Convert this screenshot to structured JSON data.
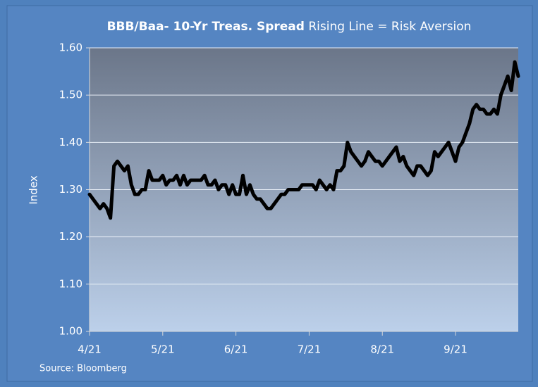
{
  "chart_data": {
    "type": "line",
    "title": "BBB/Baa- 10-Yr Treas. Spread",
    "subtitle": "Rising Line = Risk Aversion",
    "y_label": "Index",
    "source": "Source: Bloomberg",
    "categories": [
      "4/21",
      null,
      null,
      null,
      null,
      null,
      null,
      null,
      null,
      null,
      null,
      null,
      null,
      null,
      null,
      null,
      null,
      null,
      null,
      null,
      null,
      "5/21",
      null,
      null,
      null,
      null,
      null,
      null,
      null,
      null,
      null,
      null,
      null,
      null,
      null,
      null,
      null,
      null,
      null,
      null,
      null,
      null,
      "6/21",
      null,
      null,
      null,
      null,
      null,
      null,
      null,
      null,
      null,
      null,
      null,
      null,
      null,
      null,
      null,
      null,
      null,
      null,
      null,
      null,
      "7/21",
      null,
      null,
      null,
      null,
      null,
      null,
      null,
      null,
      null,
      null,
      null,
      null,
      null,
      null,
      null,
      null,
      null,
      null,
      null,
      null,
      "8/21",
      null,
      null,
      null,
      null,
      null,
      null,
      null,
      null,
      null,
      null,
      null,
      null,
      null,
      null,
      null,
      null,
      null,
      null,
      null,
      null,
      "9/21",
      null,
      null,
      null,
      null,
      null,
      null,
      null,
      null,
      null,
      null,
      null,
      null,
      null,
      null,
      null,
      null,
      null,
      null
    ],
    "series": [
      {
        "name": "BBB/Baa- 10-Yr Treas. Spread",
        "color": "#000000",
        "values": [
          1.29,
          1.28,
          1.27,
          1.26,
          1.27,
          1.26,
          1.24,
          1.35,
          1.36,
          1.35,
          1.34,
          1.35,
          1.31,
          1.29,
          1.29,
          1.3,
          1.3,
          1.34,
          1.32,
          1.32,
          1.32,
          1.33,
          1.31,
          1.32,
          1.32,
          1.33,
          1.31,
          1.33,
          1.31,
          1.32,
          1.32,
          1.32,
          1.32,
          1.33,
          1.31,
          1.31,
          1.32,
          1.3,
          1.31,
          1.31,
          1.29,
          1.31,
          1.29,
          1.29,
          1.33,
          1.29,
          1.31,
          1.29,
          1.28,
          1.28,
          1.27,
          1.26,
          1.26,
          1.27,
          1.28,
          1.29,
          1.29,
          1.3,
          1.3,
          1.3,
          1.3,
          1.31,
          1.31,
          1.31,
          1.31,
          1.3,
          1.32,
          1.31,
          1.3,
          1.31,
          1.3,
          1.34,
          1.34,
          1.35,
          1.4,
          1.38,
          1.37,
          1.36,
          1.35,
          1.36,
          1.38,
          1.37,
          1.36,
          1.36,
          1.35,
          1.36,
          1.37,
          1.38,
          1.39,
          1.36,
          1.37,
          1.35,
          1.34,
          1.33,
          1.35,
          1.35,
          1.34,
          1.33,
          1.34,
          1.38,
          1.37,
          1.38,
          1.39,
          1.4,
          1.38,
          1.36,
          1.39,
          1.4,
          1.42,
          1.44,
          1.47,
          1.48,
          1.47,
          1.47,
          1.46,
          1.46,
          1.47,
          1.46,
          1.5,
          1.52,
          1.54,
          1.51,
          1.57,
          1.54
        ]
      }
    ],
    "ylim": [
      1.0,
      1.6
    ],
    "yticks": [
      {
        "value": 1.0,
        "label": "1.00"
      },
      {
        "value": 1.1,
        "label": "1.10"
      },
      {
        "value": 1.2,
        "label": "1.20"
      },
      {
        "value": 1.3,
        "label": "1.30"
      },
      {
        "value": 1.4,
        "label": "1.40"
      },
      {
        "value": 1.5,
        "label": "1.50"
      },
      {
        "value": 1.6,
        "label": "1.60"
      }
    ],
    "grid": true
  }
}
